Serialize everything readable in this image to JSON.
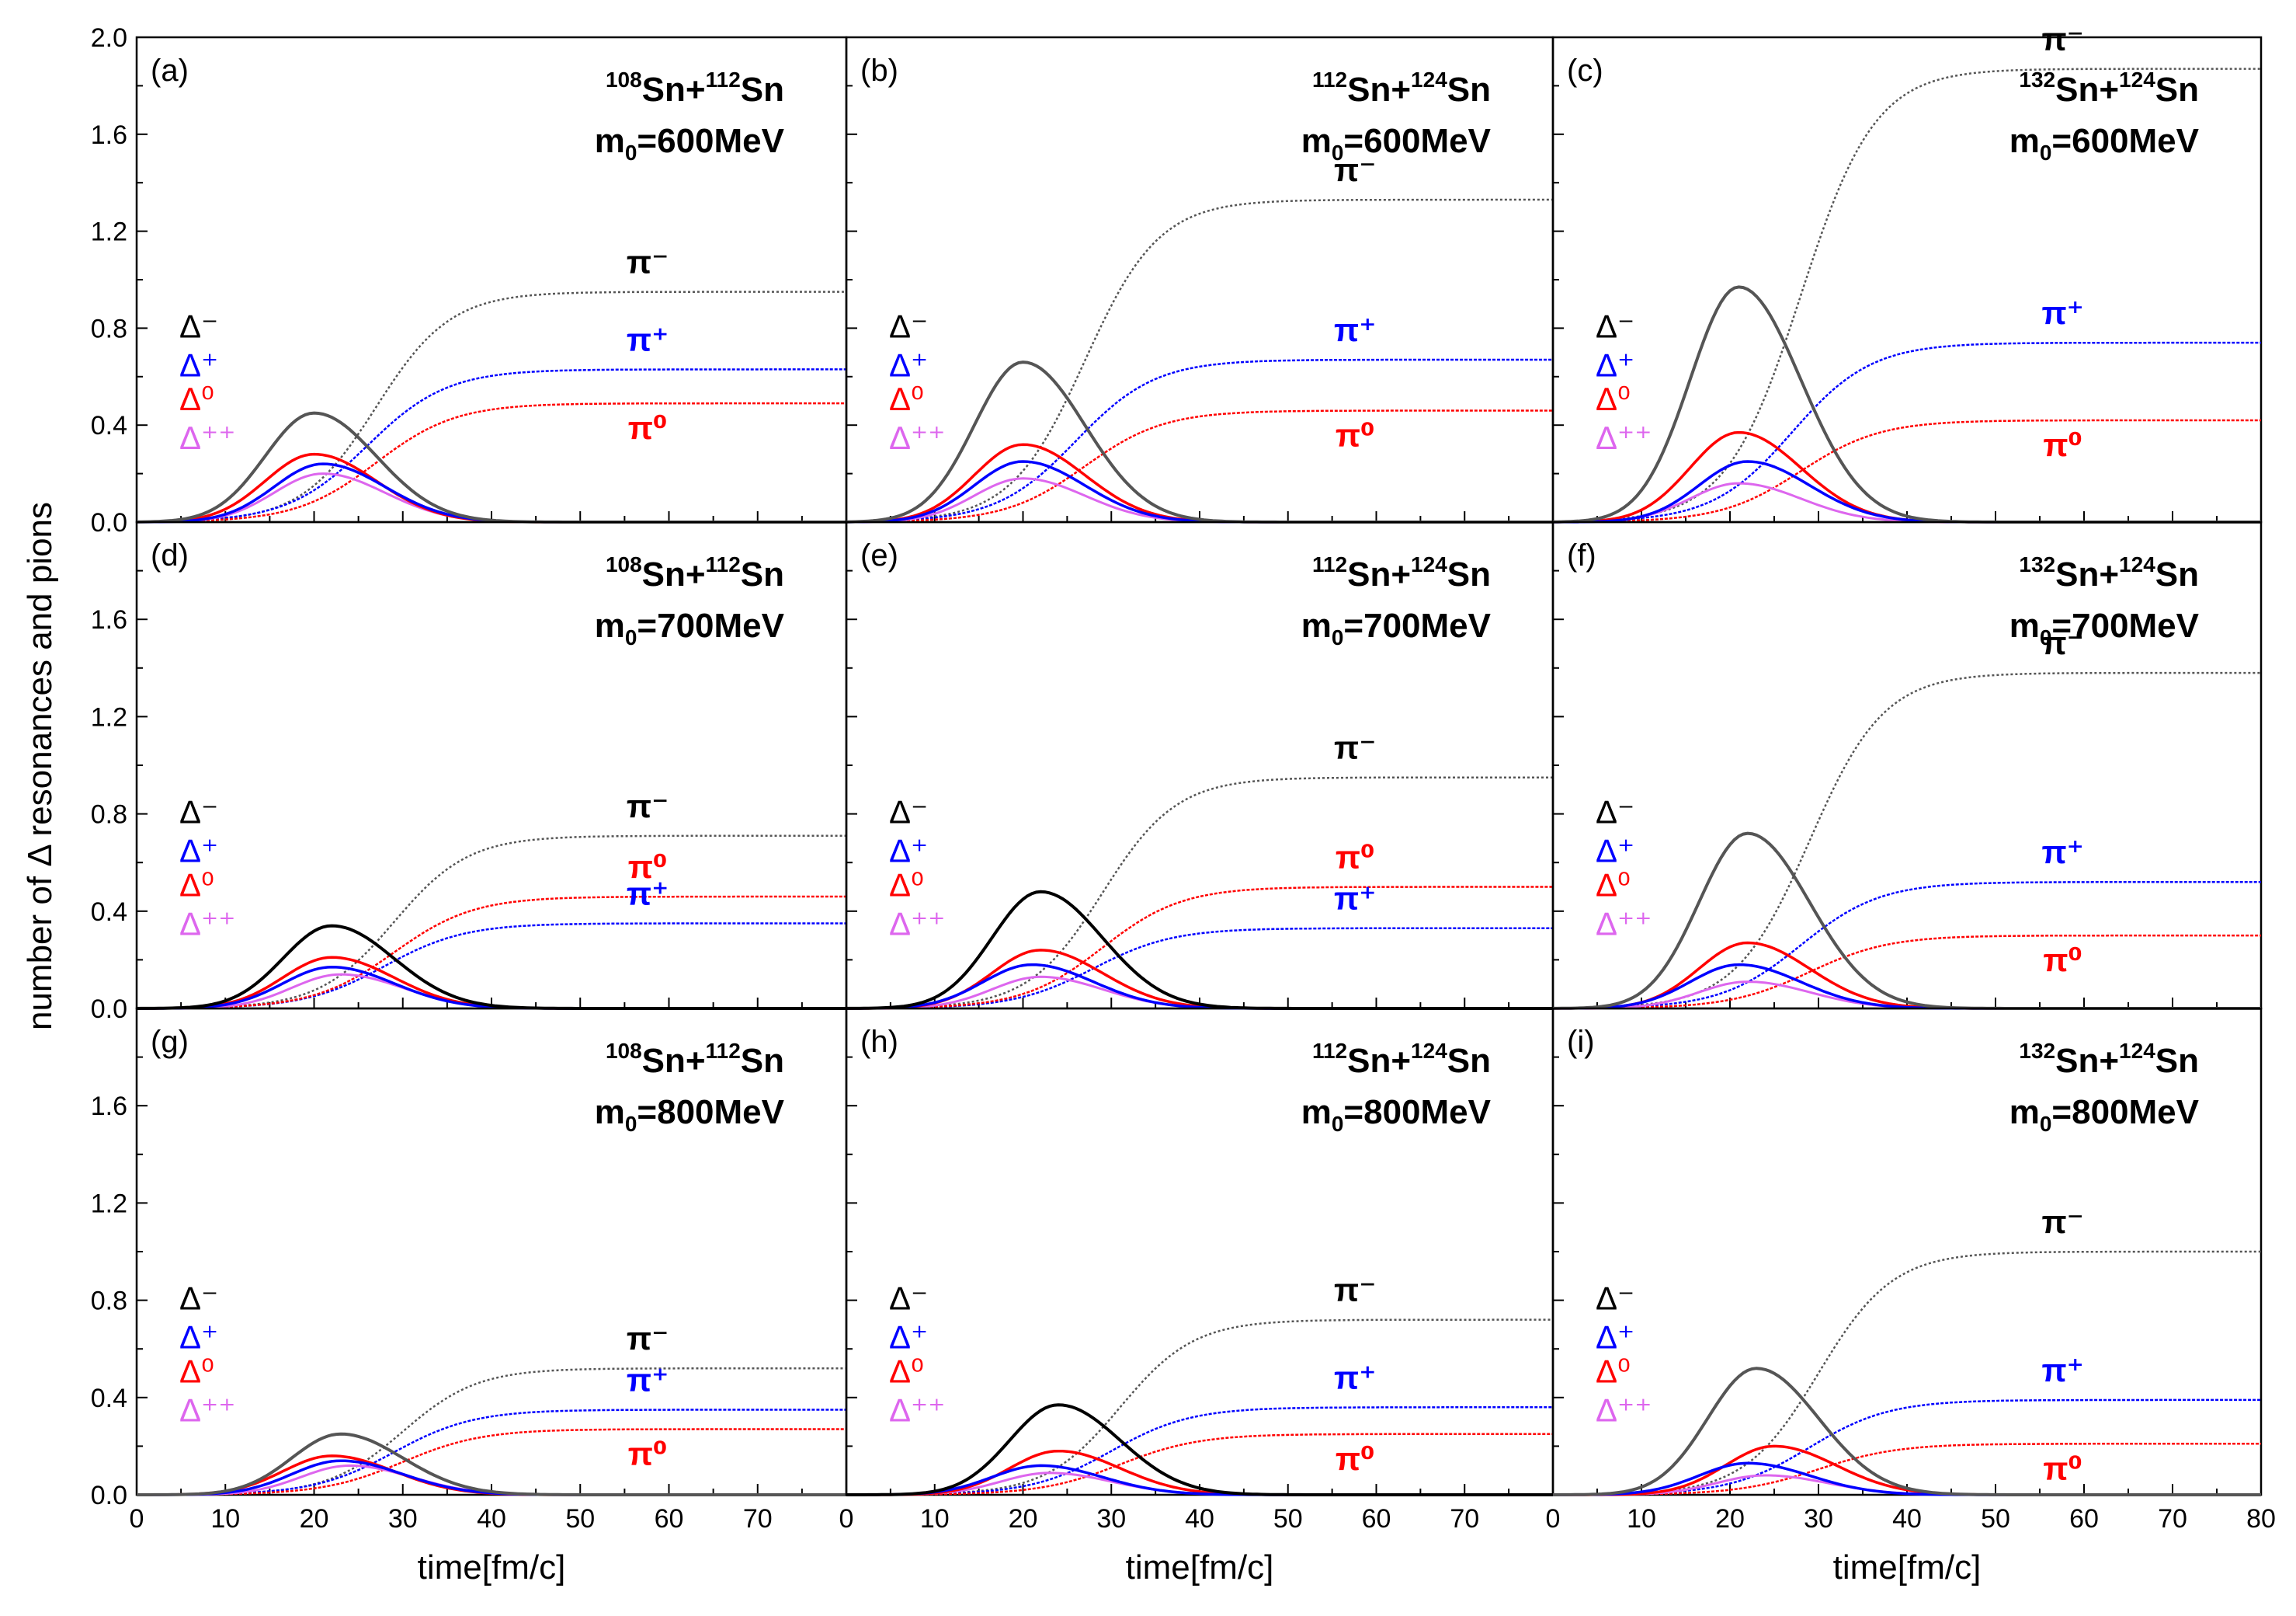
{
  "y_label": "number of Δ resonances and pions",
  "x_label": "time[fm/c]",
  "x_ticks": [
    "0",
    "10",
    "20",
    "30",
    "40",
    "50",
    "60",
    "70",
    "80"
  ],
  "y_ticks": [
    "0.0",
    "0.4",
    "0.8",
    "1.2",
    "1.6",
    "2.0"
  ],
  "colors": {
    "delta_minus": "#000000",
    "delta_plus": "#0000ff",
    "delta_zero": "#ff0000",
    "delta_pp": "#dd66ee",
    "pi_minus": "#555555",
    "pi_plus": "#0000ff",
    "pi_zero": "#ff0000"
  },
  "chart_data": [
    {
      "panel": "(a)",
      "system": {
        "a1": "108",
        "a2": "112"
      },
      "m0": "600",
      "type": "line",
      "xlim": [
        0,
        80
      ],
      "ylim": [
        0,
        2.0
      ],
      "delta_peaks": {
        "delta_minus": [
          20,
          0.45
        ],
        "delta_plus": [
          21,
          0.24
        ],
        "delta_zero": [
          20,
          0.28
        ],
        "delta_pp": [
          21,
          0.2
        ]
      },
      "pion_asymptotes": {
        "pi_minus": 0.95,
        "pi_plus": 0.63,
        "pi_zero": 0.49
      },
      "labels": {
        "delta_minus": "Δ⁻",
        "delta_plus": "Δ⁺",
        "delta_zero": "Δ⁰",
        "delta_pp": "Δ⁺⁺",
        "pi_minus": "π⁻",
        "pi_plus": "π⁺",
        "pi_zero": "π⁰"
      }
    },
    {
      "panel": "(b)",
      "system": {
        "a1": "112",
        "a2": "124"
      },
      "m0": "600",
      "type": "line",
      "xlim": [
        0,
        80
      ],
      "ylim": [
        0,
        2.0
      ],
      "delta_peaks": {
        "delta_minus": [
          20,
          0.66
        ],
        "delta_plus": [
          20,
          0.25
        ],
        "delta_zero": [
          20,
          0.32
        ],
        "delta_pp": [
          20,
          0.18
        ]
      },
      "pion_asymptotes": {
        "pi_minus": 1.33,
        "pi_plus": 0.67,
        "pi_zero": 0.46
      },
      "labels": {
        "delta_minus": "Δ⁻",
        "delta_plus": "Δ⁺",
        "delta_zero": "Δ⁰",
        "delta_pp": "Δ⁺⁺",
        "pi_minus": "π⁻",
        "pi_plus": "π⁺",
        "pi_zero": "π⁰"
      }
    },
    {
      "panel": "(c)",
      "system": {
        "a1": "132",
        "a2": "124"
      },
      "m0": "600",
      "type": "line",
      "xlim": [
        0,
        80
      ],
      "ylim": [
        0,
        2.0
      ],
      "delta_peaks": {
        "delta_minus": [
          21,
          0.97
        ],
        "delta_plus": [
          22,
          0.25
        ],
        "delta_zero": [
          21,
          0.37
        ],
        "delta_pp": [
          21,
          0.16
        ]
      },
      "pion_asymptotes": {
        "pi_minus": 1.87,
        "pi_plus": 0.74,
        "pi_zero": 0.42
      },
      "labels": {
        "delta_minus": "Δ⁻",
        "delta_plus": "Δ⁺",
        "delta_zero": "Δ⁰",
        "delta_pp": "Δ⁺⁺",
        "pi_minus": "π⁻",
        "pi_plus": "π⁺",
        "pi_zero": "π⁰"
      }
    },
    {
      "panel": "(d)",
      "system": {
        "a1": "108",
        "a2": "112"
      },
      "m0": "700",
      "type": "line",
      "xlim": [
        0,
        80
      ],
      "ylim": [
        0,
        2.0
      ],
      "delta_peaks": {
        "delta_minus": [
          22,
          0.34
        ],
        "delta_plus": [
          22,
          0.17
        ],
        "delta_zero": [
          22,
          0.21
        ],
        "delta_pp": [
          23,
          0.14
        ]
      },
      "pion_asymptotes": {
        "pi_minus": 0.71,
        "pi_plus": 0.35,
        "pi_zero": 0.46
      },
      "labels": {
        "delta_minus": "Δ⁻",
        "delta_plus": "Δ⁺",
        "delta_zero": "Δ⁰",
        "delta_pp": "Δ⁺⁺",
        "pi_minus": "π⁻",
        "pi_plus": "π⁺",
        "pi_zero": "π⁰"
      }
    },
    {
      "panel": "(e)",
      "system": {
        "a1": "112",
        "a2": "124"
      },
      "m0": "700",
      "type": "line",
      "xlim": [
        0,
        80
      ],
      "ylim": [
        0,
        2.0
      ],
      "delta_peaks": {
        "delta_minus": [
          22,
          0.48
        ],
        "delta_plus": [
          21,
          0.18
        ],
        "delta_zero": [
          22,
          0.24
        ],
        "delta_pp": [
          22,
          0.13
        ]
      },
      "pion_asymptotes": {
        "pi_minus": 0.95,
        "pi_plus": 0.33,
        "pi_zero": 0.5
      },
      "labels": {
        "delta_minus": "Δ⁻",
        "delta_plus": "Δ⁺",
        "delta_zero": "Δ⁰",
        "delta_pp": "Δ⁺⁺",
        "pi_minus": "π⁻",
        "pi_plus": "π⁺",
        "pi_zero": "π⁰"
      }
    },
    {
      "panel": "(f)",
      "system": {
        "a1": "132",
        "a2": "124"
      },
      "m0": "700",
      "type": "line",
      "xlim": [
        0,
        80
      ],
      "ylim": [
        0,
        2.0
      ],
      "delta_peaks": {
        "delta_minus": [
          22,
          0.72
        ],
        "delta_plus": [
          21,
          0.18
        ],
        "delta_zero": [
          22,
          0.27
        ],
        "delta_pp": [
          22,
          0.11
        ]
      },
      "pion_asymptotes": {
        "pi_minus": 1.38,
        "pi_plus": 0.52,
        "pi_zero": 0.3
      },
      "labels": {
        "delta_minus": "Δ⁻",
        "delta_plus": "Δ⁺",
        "delta_zero": "Δ⁰",
        "delta_pp": "Δ⁺⁺",
        "pi_minus": "π⁻",
        "pi_plus": "π⁺",
        "pi_zero": "π⁰"
      }
    },
    {
      "panel": "(g)",
      "system": {
        "a1": "108",
        "a2": "112"
      },
      "m0": "800",
      "type": "line",
      "xlim": [
        0,
        80
      ],
      "ylim": [
        0,
        2.0
      ],
      "delta_peaks": {
        "delta_minus": [
          23,
          0.25
        ],
        "delta_plus": [
          23,
          0.14
        ],
        "delta_zero": [
          22,
          0.16
        ],
        "delta_pp": [
          24,
          0.12
        ]
      },
      "pion_asymptotes": {
        "pi_minus": 0.52,
        "pi_plus": 0.35,
        "pi_zero": 0.27
      },
      "labels": {
        "delta_minus": "Δ⁻",
        "delta_plus": "Δ⁺",
        "delta_zero": "Δ⁰",
        "delta_pp": "Δ⁺⁺",
        "pi_minus": "π⁻",
        "pi_plus": "π⁺",
        "pi_zero": "π⁰"
      }
    },
    {
      "panel": "(h)",
      "system": {
        "a1": "112",
        "a2": "124"
      },
      "m0": "800",
      "type": "line",
      "xlim": [
        0,
        80
      ],
      "ylim": [
        0,
        2.0
      ],
      "delta_peaks": {
        "delta_minus": [
          24,
          0.37
        ],
        "delta_plus": [
          22,
          0.12
        ],
        "delta_zero": [
          24,
          0.18
        ],
        "delta_pp": [
          23,
          0.09
        ]
      },
      "pion_asymptotes": {
        "pi_minus": 0.72,
        "pi_plus": 0.36,
        "pi_zero": 0.25
      },
      "labels": {
        "delta_minus": "Δ⁻",
        "delta_plus": "Δ⁺",
        "delta_zero": "Δ⁰",
        "delta_pp": "Δ⁺⁺",
        "pi_minus": "π⁻",
        "pi_plus": "π⁺",
        "pi_zero": "π⁰"
      }
    },
    {
      "panel": "(i)",
      "system": {
        "a1": "132",
        "a2": "124"
      },
      "m0": "800",
      "type": "line",
      "xlim": [
        0,
        80
      ],
      "ylim": [
        0,
        2.0
      ],
      "delta_peaks": {
        "delta_minus": [
          23,
          0.52
        ],
        "delta_plus": [
          22,
          0.13
        ],
        "delta_zero": [
          25,
          0.2
        ],
        "delta_pp": [
          24,
          0.08
        ]
      },
      "pion_asymptotes": {
        "pi_minus": 1.0,
        "pi_plus": 0.39,
        "pi_zero": 0.21
      },
      "labels": {
        "delta_minus": "Δ⁻",
        "delta_plus": "Δ⁺",
        "delta_zero": "Δ⁰",
        "delta_pp": "Δ⁺⁺",
        "pi_minus": "π⁻",
        "pi_plus": "π⁺",
        "pi_zero": "π⁰"
      }
    }
  ]
}
